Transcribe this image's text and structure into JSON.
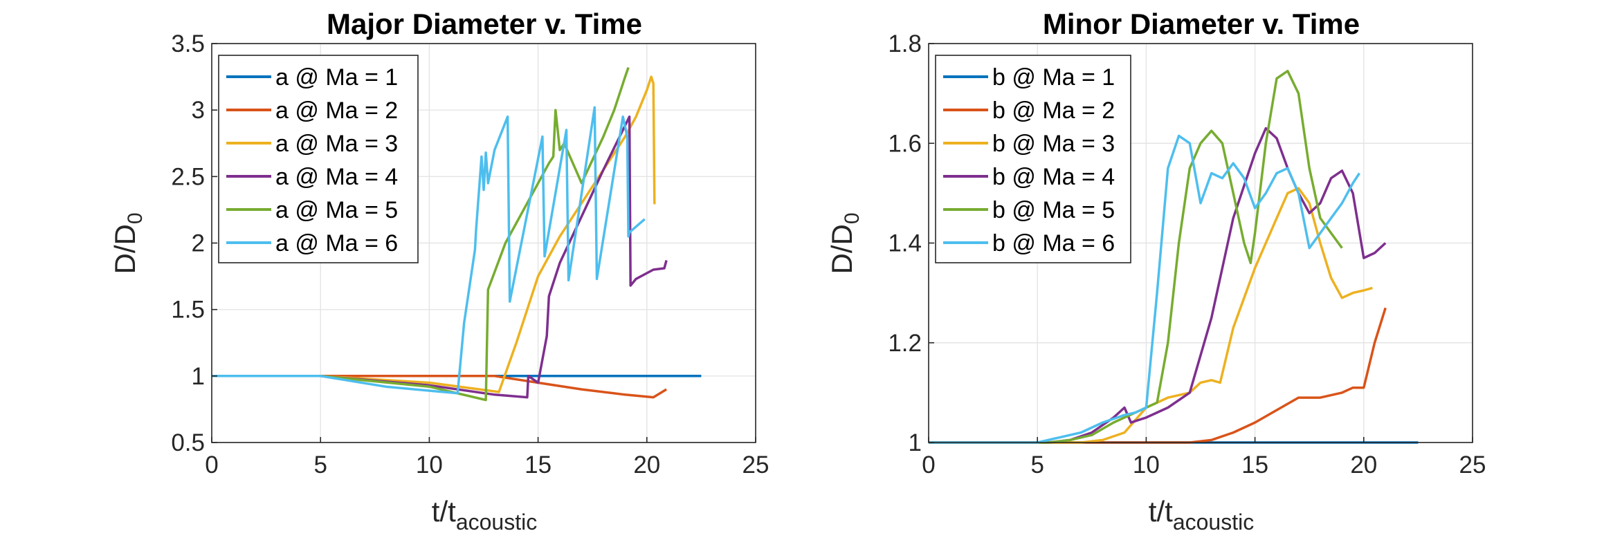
{
  "colors": {
    "series": [
      "#0072BD",
      "#D95319",
      "#EDB120",
      "#7E2F8E",
      "#77AC30",
      "#4DBEEE"
    ],
    "grid": "#e4e4e4",
    "axis": "#262626"
  },
  "chart_data": [
    {
      "type": "line",
      "title": "Major Diameter v. Time",
      "ylabel_main": "D/D",
      "ylabel_sub": "0",
      "xlabel_main": "t/t",
      "xlabel_sub": "acoustic",
      "xlim": [
        0,
        25
      ],
      "ylim": [
        0.5,
        3.5
      ],
      "xticks": [
        0,
        5,
        10,
        15,
        20,
        25
      ],
      "yticks": [
        0.5,
        1,
        1.5,
        2,
        2.5,
        3,
        3.5
      ],
      "xtick_labels": [
        "0",
        "5",
        "10",
        "15",
        "20",
        "25"
      ],
      "ytick_labels": [
        "0.5",
        "1",
        "1.5",
        "2",
        "2.5",
        "3",
        "3.5"
      ],
      "grid": true,
      "legend_position": "top-left",
      "series": [
        {
          "name": "a @ Ma = 1",
          "x": [
            0,
            22.5
          ],
          "y": [
            1,
            1
          ]
        },
        {
          "name": "a @ Ma = 2",
          "x": [
            0,
            5,
            13,
            15,
            17,
            19,
            20.3,
            20.9
          ],
          "y": [
            1,
            1,
            1,
            0.95,
            0.9,
            0.86,
            0.84,
            0.9
          ]
        },
        {
          "name": "a @ Ma = 3",
          "x": [
            0,
            5,
            7,
            10,
            13.2,
            14,
            15,
            16,
            17,
            18,
            19,
            19.5,
            20,
            20.2,
            20.3,
            20.35,
            20.4
          ],
          "y": [
            1,
            1,
            0.98,
            0.95,
            0.88,
            1.25,
            1.75,
            2.05,
            2.3,
            2.55,
            2.8,
            2.95,
            3.15,
            3.25,
            3.2,
            2.3,
            2.3
          ]
        },
        {
          "name": "a @ Ma = 4",
          "x": [
            0,
            5,
            10,
            13,
            14.5,
            14.55,
            15,
            15.4,
            15.5,
            16,
            17,
            18,
            19.2,
            19.25,
            19.5,
            20.3,
            20.8,
            20.9
          ],
          "y": [
            1,
            1,
            0.93,
            0.86,
            0.84,
            1.0,
            0.95,
            1.3,
            1.6,
            1.85,
            2.2,
            2.55,
            2.95,
            1.68,
            1.73,
            1.8,
            1.81,
            1.87
          ]
        },
        {
          "name": "a @ Ma = 5",
          "x": [
            0,
            5,
            10,
            12.6,
            12.7,
            13.5,
            14.5,
            15.5,
            15.7,
            15.8,
            16,
            16.2,
            17,
            18,
            18.5,
            19,
            19.15
          ],
          "y": [
            1,
            1,
            0.92,
            0.82,
            1.65,
            2.0,
            2.3,
            2.6,
            2.65,
            3.0,
            2.7,
            2.75,
            2.45,
            2.8,
            3.0,
            3.25,
            3.32
          ]
        },
        {
          "name": "a @ Ma = 6",
          "x": [
            0,
            5,
            8,
            11.3,
            11.6,
            12.1,
            12.15,
            12.4,
            12.5,
            12.6,
            12.7,
            13,
            13.6,
            13.7,
            15.2,
            15.3,
            16.3,
            16.4,
            17.6,
            17.7,
            18.9,
            19.1,
            19.15,
            19.2,
            19.9
          ],
          "y": [
            1,
            1,
            0.92,
            0.87,
            1.4,
            1.95,
            2.1,
            2.65,
            2.4,
            2.68,
            2.45,
            2.7,
            2.95,
            1.56,
            2.8,
            1.9,
            2.85,
            1.72,
            3.02,
            1.73,
            2.95,
            2.8,
            2.05,
            2.08,
            2.18
          ]
        }
      ]
    },
    {
      "type": "line",
      "title": "Minor Diameter v. Time",
      "ylabel_main": "D/D",
      "ylabel_sub": "0",
      "xlabel_main": "t/t",
      "xlabel_sub": "acoustic",
      "xlim": [
        0,
        25
      ],
      "ylim": [
        1,
        1.8
      ],
      "xticks": [
        0,
        5,
        10,
        15,
        20,
        25
      ],
      "yticks": [
        1,
        1.2,
        1.4,
        1.6,
        1.8
      ],
      "xtick_labels": [
        "0",
        "5",
        "10",
        "15",
        "20",
        "25"
      ],
      "ytick_labels": [
        "1",
        "1.2",
        "1.4",
        "1.6",
        "1.8"
      ],
      "grid": true,
      "legend_position": "top-left",
      "series": [
        {
          "name": "b @ Ma = 1",
          "x": [
            0,
            22.5
          ],
          "y": [
            1,
            1
          ]
        },
        {
          "name": "b @ Ma = 2",
          "x": [
            0,
            12,
            13,
            14,
            15,
            16,
            17,
            18,
            19,
            19.5,
            20,
            20.5,
            21
          ],
          "y": [
            1,
            1,
            1.005,
            1.02,
            1.04,
            1.065,
            1.09,
            1.09,
            1.1,
            1.11,
            1.11,
            1.2,
            1.27
          ]
        },
        {
          "name": "b @ Ma = 3",
          "x": [
            0,
            6,
            7,
            8,
            9,
            10,
            11,
            12,
            12.5,
            13,
            13.4,
            14,
            15,
            16,
            16.5,
            17,
            17.5,
            18,
            18.5,
            19,
            19.5,
            20,
            20.4
          ],
          "y": [
            1,
            1,
            1.0,
            1.005,
            1.02,
            1.07,
            1.09,
            1.1,
            1.12,
            1.125,
            1.12,
            1.23,
            1.35,
            1.45,
            1.5,
            1.51,
            1.48,
            1.4,
            1.33,
            1.29,
            1.3,
            1.305,
            1.31
          ]
        },
        {
          "name": "b @ Ma = 4",
          "x": [
            0,
            5.5,
            6.5,
            7.5,
            8.5,
            9,
            9.3,
            10,
            11,
            12,
            13,
            14,
            15,
            15.5,
            16,
            16.5,
            17,
            17.5,
            18,
            18.5,
            19,
            19.5,
            20,
            20.5,
            21
          ],
          "y": [
            1,
            1,
            1.005,
            1.02,
            1.05,
            1.07,
            1.04,
            1.05,
            1.07,
            1.1,
            1.25,
            1.45,
            1.58,
            1.63,
            1.61,
            1.55,
            1.5,
            1.46,
            1.48,
            1.53,
            1.545,
            1.5,
            1.37,
            1.38,
            1.4
          ]
        },
        {
          "name": "b @ Ma = 5",
          "x": [
            0,
            5.5,
            6.5,
            7.5,
            8.5,
            9.5,
            10.5,
            11,
            11.5,
            12,
            12.5,
            13,
            13.5,
            14,
            14.5,
            14.8,
            15,
            15.5,
            16,
            16.5,
            17,
            17.5,
            18,
            18.5,
            19
          ],
          "y": [
            1,
            1,
            1.005,
            1.015,
            1.04,
            1.06,
            1.08,
            1.2,
            1.4,
            1.55,
            1.6,
            1.625,
            1.6,
            1.5,
            1.4,
            1.36,
            1.42,
            1.6,
            1.73,
            1.745,
            1.7,
            1.55,
            1.45,
            1.42,
            1.39
          ]
        },
        {
          "name": "b @ Ma = 6",
          "x": [
            0,
            5,
            6,
            7,
            8,
            9,
            9.5,
            10,
            10.5,
            11,
            11.5,
            12,
            12.5,
            13,
            13.5,
            14,
            14.5,
            15,
            15.5,
            16,
            16.5,
            17,
            17.5,
            18,
            18.5,
            19,
            19.5,
            19.8
          ],
          "y": [
            1,
            1,
            1.01,
            1.02,
            1.04,
            1.055,
            1.06,
            1.07,
            1.3,
            1.55,
            1.615,
            1.6,
            1.48,
            1.54,
            1.53,
            1.56,
            1.53,
            1.47,
            1.5,
            1.54,
            1.55,
            1.5,
            1.39,
            1.42,
            1.45,
            1.48,
            1.52,
            1.54
          ]
        }
      ]
    }
  ]
}
